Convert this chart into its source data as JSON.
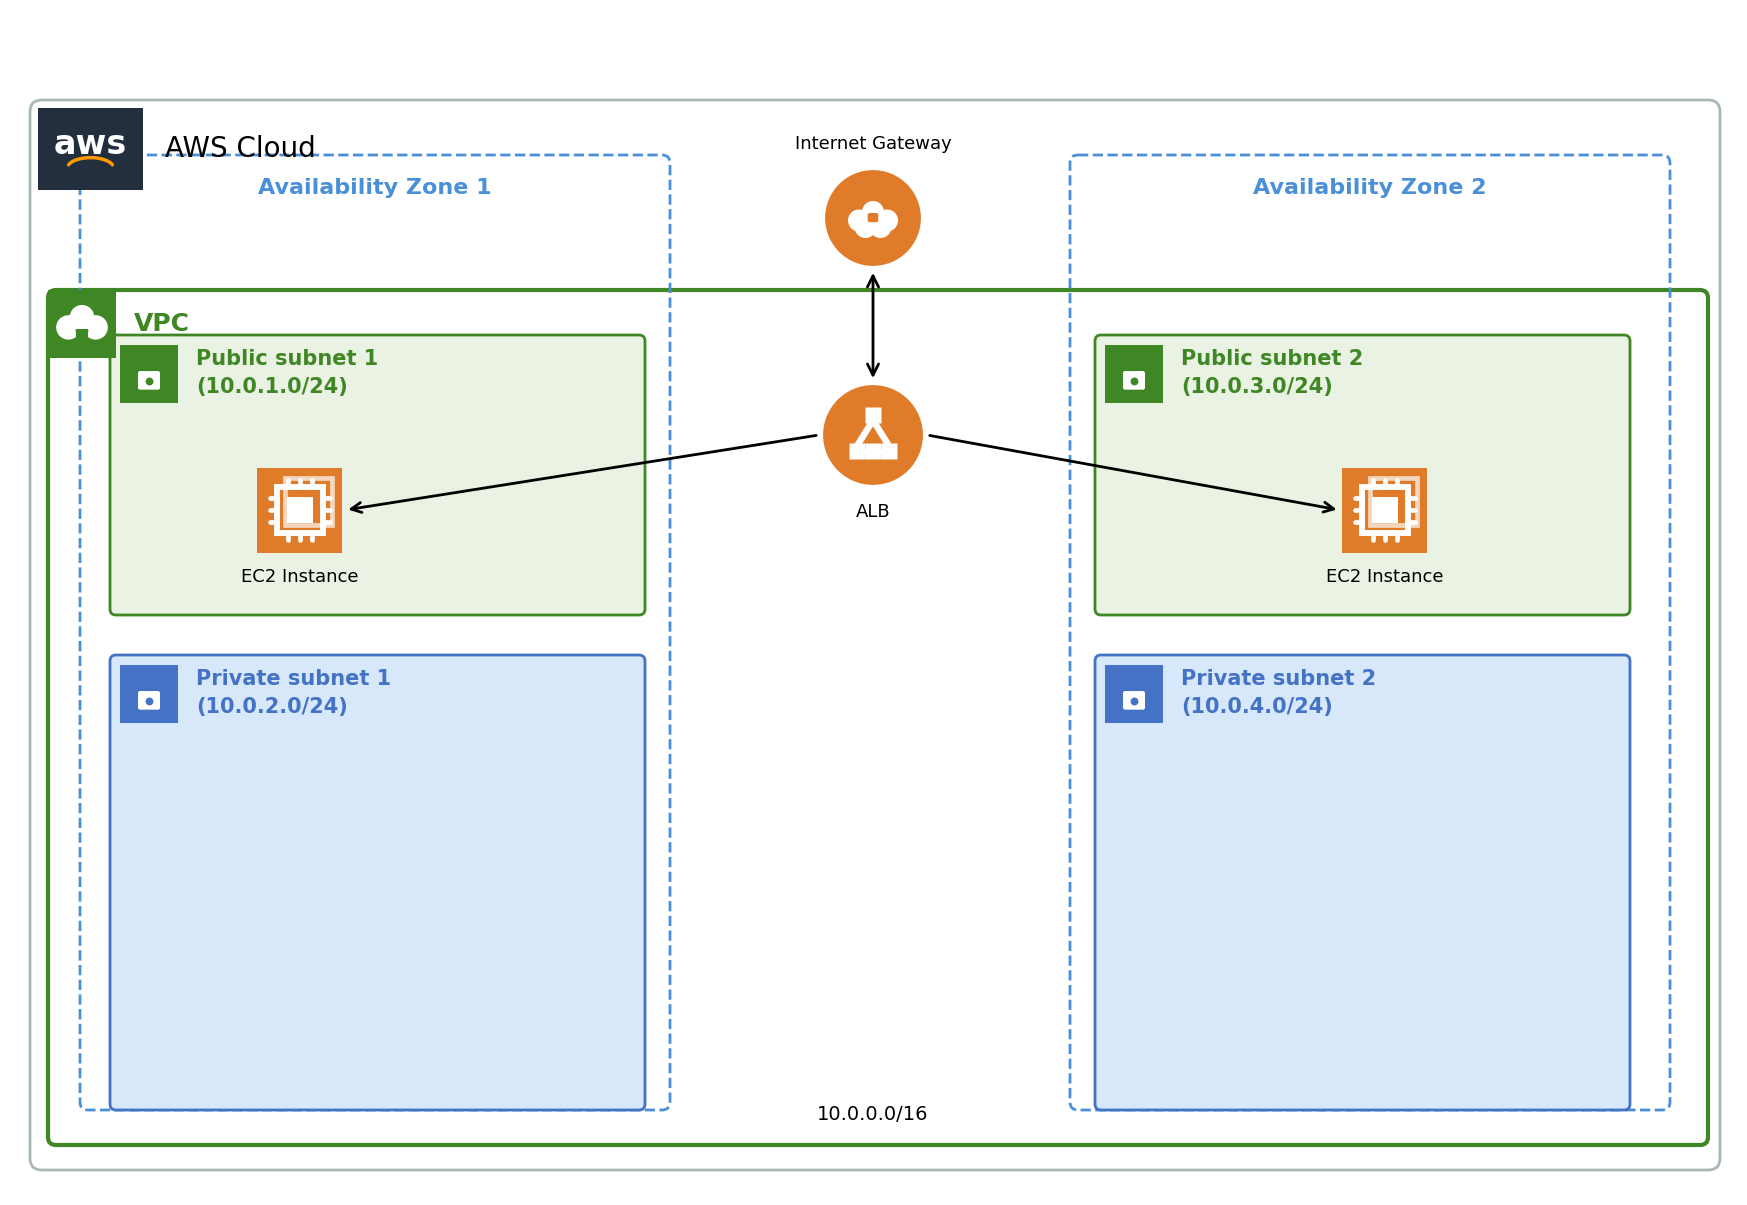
{
  "title": "AWS Cloud",
  "aws_bg_color": "#232F3E",
  "outer_border_color": "#AAB7B8",
  "vpc_border_color": "#3F8624",
  "vpc_label": "VPC",
  "vpc_icon_bg": "#3F8624",
  "az_border_color": "#4A90D9",
  "az1_label": "Availability Zone 1",
  "az2_label": "Availability Zone 2",
  "public_subnet_bg": "#EAF2E3",
  "public_subnet_border": "#3F8624",
  "public_subnet_icon_bg": "#3F8624",
  "public_subnet1_label": "Public subnet 1\n(10.0.1.0/24)",
  "public_subnet2_label": "Public subnet 2\n(10.0.3.0/24)",
  "private_subnet_bg": "#D6E8FA",
  "private_subnet_border": "#4472C4",
  "private_subnet_icon_bg": "#4472C4",
  "private_subnet1_label": "Private subnet 1\n(10.0.2.0/24)",
  "private_subnet2_label": "Private subnet 2\n(10.0.4.0/24)",
  "ec2_bg": "#E07B2A",
  "alb_bg": "#E07B2A",
  "igw_bg": "#E07B2A",
  "ec2_label": "EC2 Instance",
  "alb_label": "ALB",
  "igw_label": "Internet Gateway",
  "cidr_label": "10.0.0.0/16",
  "subnet_text_color_green": "#3F8624",
  "subnet_text_color_blue": "#4472C4",
  "bg_color": "#FFFFFF"
}
